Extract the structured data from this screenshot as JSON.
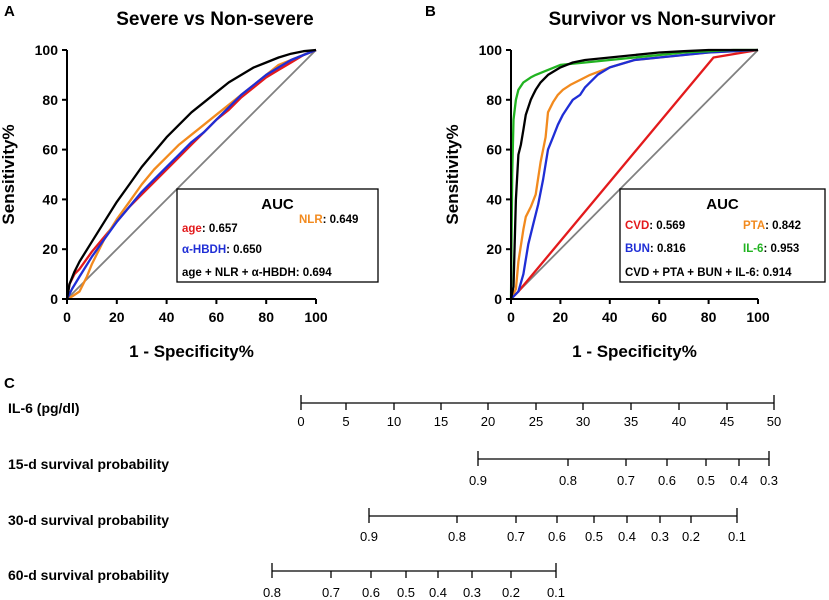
{
  "panel_labels": {
    "a": "A",
    "b": "B",
    "c": "C"
  },
  "colors": {
    "black": "#000000",
    "red": "#e31a1c",
    "orange": "#f28a1e",
    "blue": "#1f2ed6",
    "green": "#21b321",
    "diagonal": "#808080"
  },
  "chart_data": [
    {
      "panel": "A",
      "type": "line",
      "title": "Severe vs Non-severe",
      "xlabel": "1 - Specificity%",
      "ylabel": "Sensitivity%",
      "xlim": [
        0,
        100
      ],
      "ylim": [
        0,
        100
      ],
      "xticks": [
        0,
        20,
        40,
        60,
        80,
        100
      ],
      "yticks": [
        0,
        20,
        40,
        60,
        80,
        100
      ],
      "series": [
        {
          "name": "age",
          "color": "#e31a1c",
          "x": [
            0,
            1,
            3,
            5,
            10,
            15,
            20,
            25,
            30,
            35,
            40,
            45,
            50,
            55,
            60,
            65,
            70,
            75,
            80,
            85,
            90,
            95,
            100
          ],
          "y": [
            0,
            6,
            10,
            12,
            19,
            25,
            31,
            37,
            42,
            47,
            52,
            57,
            62,
            67,
            72,
            76,
            81,
            85,
            89,
            92,
            95,
            98,
            100
          ]
        },
        {
          "name": "NLR",
          "color": "#f28a1e",
          "x": [
            0,
            2,
            5,
            8,
            10,
            15,
            20,
            25,
            30,
            35,
            40,
            45,
            50,
            55,
            60,
            65,
            70,
            75,
            80,
            85,
            90,
            95,
            100
          ],
          "y": [
            0,
            1,
            3,
            9,
            14,
            24,
            32,
            39,
            46,
            52,
            57,
            62,
            66,
            70,
            74,
            78,
            82,
            86,
            90,
            94,
            96,
            98,
            100
          ]
        },
        {
          "name": "α-HBDH",
          "color": "#1f2ed6",
          "x": [
            0,
            2,
            5,
            10,
            15,
            20,
            25,
            30,
            35,
            40,
            45,
            50,
            55,
            60,
            65,
            70,
            75,
            80,
            85,
            90,
            95,
            100
          ],
          "y": [
            0,
            4,
            9,
            17,
            24,
            31,
            37,
            43,
            48,
            53,
            58,
            63,
            67,
            72,
            77,
            82,
            86,
            90,
            93,
            96,
            98,
            100
          ]
        },
        {
          "name": "age + NLR + α-HBDH",
          "color": "#000000",
          "x": [
            0,
            1,
            3,
            5,
            10,
            15,
            20,
            25,
            30,
            35,
            40,
            45,
            50,
            55,
            60,
            65,
            70,
            75,
            80,
            85,
            90,
            95,
            100
          ],
          "y": [
            0,
            6,
            11,
            15,
            23,
            31,
            39,
            46,
            53,
            59,
            65,
            70,
            75,
            79,
            83,
            87,
            90,
            93,
            95,
            97,
            98.5,
            99.5,
            100
          ]
        },
        {
          "name": "reference",
          "color": "#808080",
          "x": [
            0,
            100
          ],
          "y": [
            0,
            100
          ]
        }
      ],
      "legend": {
        "title": "AUC",
        "entries": [
          {
            "name": "age",
            "value": ": 0.657",
            "color": "#e31a1c"
          },
          {
            "name": "NLR",
            "value": ": 0.649",
            "color": "#f28a1e"
          },
          {
            "name": "α-HBDH",
            "value": ": 0.650",
            "color": "#1f2ed6"
          },
          {
            "name": "age + NLR + α-HBDH: 0.694",
            "value": "",
            "color": "#000000"
          }
        ],
        "position": "bottom-right"
      }
    },
    {
      "panel": "B",
      "type": "line",
      "title": "Survivor vs Non-survivor",
      "xlabel": "1 - Specificity%",
      "ylabel": "Sensitivity%",
      "xlim": [
        0,
        100
      ],
      "ylim": [
        0,
        100
      ],
      "xticks": [
        0,
        20,
        40,
        60,
        80,
        100
      ],
      "yticks": [
        0,
        20,
        40,
        60,
        80,
        100
      ],
      "series": [
        {
          "name": "CVD",
          "color": "#e31a1c",
          "x": [
            0,
            3,
            82,
            100
          ],
          "y": [
            0,
            3,
            97,
            100
          ]
        },
        {
          "name": "PTA",
          "color": "#f28a1e",
          "x": [
            0,
            2,
            3,
            5,
            6,
            8,
            10,
            12,
            14,
            15,
            17,
            19,
            21,
            24,
            28,
            32,
            40,
            50,
            60,
            70,
            80,
            90,
            100
          ],
          "y": [
            0,
            4,
            15,
            28,
            33,
            37,
            42,
            55,
            65,
            75,
            79,
            82,
            84,
            86,
            88,
            90,
            93,
            96,
            97,
            98,
            99,
            99.5,
            100
          ]
        },
        {
          "name": "BUN",
          "color": "#1f2ed6",
          "x": [
            0,
            3,
            5,
            7,
            9,
            11,
            13,
            15,
            17,
            19,
            21,
            23,
            25,
            28,
            30,
            35,
            40,
            50,
            60,
            70,
            80,
            90,
            100
          ],
          "y": [
            0,
            3,
            10,
            22,
            30,
            38,
            48,
            60,
            65,
            70,
            74,
            77,
            80,
            82,
            85,
            90,
            93,
            96,
            97,
            98,
            99,
            99.5,
            100
          ]
        },
        {
          "name": "IL-6",
          "color": "#21b321",
          "x": [
            0,
            0.5,
            1,
            2,
            3,
            5,
            8,
            10,
            15,
            20,
            30,
            40,
            50,
            60,
            70,
            80,
            90,
            100
          ],
          "y": [
            0,
            50,
            72,
            80,
            84,
            87,
            89,
            90,
            92,
            94,
            95,
            96,
            97,
            98,
            99,
            99.5,
            100,
            100
          ]
        },
        {
          "name": "CVD + PTA + BUN + IL-6",
          "color": "#000000",
          "x": [
            0,
            1,
            2,
            3,
            4,
            5,
            6,
            7,
            8,
            9,
            10,
            12,
            15,
            20,
            25,
            30,
            40,
            50,
            60,
            70,
            80,
            90,
            100
          ],
          "y": [
            0,
            5,
            40,
            58,
            62,
            68,
            74,
            77,
            80,
            82,
            84,
            87,
            90,
            93,
            95,
            96,
            97,
            98,
            99,
            99.5,
            100,
            100,
            100
          ]
        },
        {
          "name": "reference",
          "color": "#808080",
          "x": [
            0,
            100
          ],
          "y": [
            0,
            100
          ]
        }
      ],
      "legend": {
        "title": "AUC",
        "entries": [
          {
            "name": "CVD",
            "value": ": 0.569",
            "color": "#e31a1c"
          },
          {
            "name": "PTA",
            "value": ": 0.842",
            "color": "#f28a1e"
          },
          {
            "name": "BUN",
            "value": ": 0.816",
            "color": "#1f2ed6"
          },
          {
            "name": "IL-6",
            "value": ": 0.953",
            "color": "#21b321"
          },
          {
            "name": "CVD + PTA + BUN + IL-6: 0.914",
            "value": "",
            "color": "#000000"
          }
        ],
        "position": "bottom-right"
      }
    },
    {
      "panel": "C",
      "type": "nomogram",
      "scales": [
        {
          "label": "IL-6 (pg/dl)",
          "ticks": [
            "0",
            "5",
            "10",
            "15",
            "20",
            "25",
            "30",
            "35",
            "40",
            "45",
            "50"
          ]
        },
        {
          "label": "15-d survival probability",
          "ticks": [
            "0.9",
            "0.8",
            "0.7",
            "0.6",
            "0.5",
            "0.4",
            "0.3"
          ]
        },
        {
          "label": "30-d survival probability",
          "ticks": [
            "0.9",
            "0.8",
            "0.7",
            "0.6",
            "0.5",
            "0.4",
            "0.3",
            "0.2",
            "0.1"
          ]
        },
        {
          "label": "60-d survival probability",
          "ticks": [
            "0.8",
            "0.7",
            "0.6",
            "0.5",
            "0.4",
            "0.3",
            "0.2",
            "0.1"
          ]
        }
      ]
    }
  ]
}
